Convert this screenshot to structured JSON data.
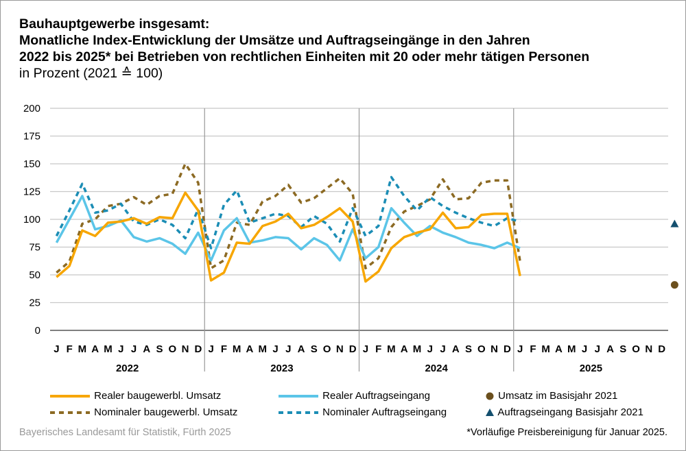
{
  "chart_data": {
    "type": "line",
    "title": "Bauhauptgewerbe insgesamt:\nMonatliche Index-Entwicklung der Umsätze und Auftragseingänge in den Jahren\n2022 bis 2025* bei Betrieben von rechtlichen Einheiten mit 20 oder mehr tätigen Personen",
    "title_lines": [
      "Bauhauptgewerbe insgesamt:",
      "Monatliche Index-Entwicklung der Umsätze und Auftragseingänge in den Jahren",
      "2022 bis 2025* bei Betrieben von rechtlichen Einheiten mit 20 oder mehr tätigen Personen"
    ],
    "subtitle": "in Prozent (2021 ≙ 100)",
    "ylim": [
      0,
      200
    ],
    "yticks": [
      0,
      25,
      50,
      75,
      100,
      125,
      150,
      175,
      200
    ],
    "grid": true,
    "month_labels": [
      "J",
      "F",
      "M",
      "A",
      "M",
      "J",
      "J",
      "A",
      "S",
      "O",
      "N",
      "D"
    ],
    "years": [
      "2022",
      "2023",
      "2024",
      "2025"
    ],
    "legend_position": "bottom",
    "series": [
      {
        "name": "Realer baugewerbl. Umsatz",
        "color": "#f7a600",
        "style": "solid",
        "values": [
          48,
          58,
          90,
          85,
          97,
          98,
          101,
          96,
          102,
          101,
          124,
          108,
          45,
          52,
          79,
          78,
          94,
          98,
          105,
          92,
          95,
          102,
          110,
          98,
          44,
          53,
          74,
          84,
          88,
          91,
          106,
          92,
          93,
          104,
          105,
          105,
          49
        ]
      },
      {
        "name": "Nominaler baugewerbl. Umsatz",
        "color": "#8c6a23",
        "style": "dashed",
        "values": [
          52,
          62,
          96,
          100,
          112,
          114,
          120,
          113,
          121,
          123,
          150,
          133,
          56,
          63,
          97,
          95,
          116,
          121,
          131,
          115,
          119,
          128,
          137,
          123,
          56,
          65,
          93,
          107,
          112,
          118,
          136,
          118,
          119,
          133,
          135,
          135,
          62
        ]
      },
      {
        "name": "Realer Auftragseingang",
        "color": "#5bc5e8",
        "style": "solid",
        "values": [
          79,
          100,
          121,
          91,
          94,
          99,
          84,
          80,
          83,
          78,
          69,
          88,
          63,
          90,
          101,
          79,
          81,
          84,
          83,
          73,
          83,
          77,
          63,
          91,
          65,
          75,
          110,
          97,
          85,
          94,
          88,
          84,
          79,
          77,
          74,
          79,
          74
        ]
      },
      {
        "name": "Nominaler Auftragseingang",
        "color": "#1b8db5",
        "style": "dashed",
        "values": [
          85,
          108,
          132,
          106,
          108,
          114,
          98,
          95,
          100,
          95,
          83,
          109,
          74,
          113,
          126,
          97,
          101,
          105,
          103,
          93,
          103,
          96,
          80,
          110,
          85,
          94,
          138,
          121,
          108,
          120,
          112,
          106,
          101,
          97,
          94,
          101,
          98
        ]
      }
    ],
    "markers": [
      {
        "name": "Umsatz im Basisjahr 2021",
        "color": "#6b4f1d",
        "shape": "circle",
        "month": "J 2025",
        "value": 41
      },
      {
        "name": "Auftragseingang Basisjahr 2021",
        "color": "#134f6e",
        "shape": "triangle",
        "month": "J 2025",
        "value": 96
      }
    ]
  },
  "source": "Bayerisches Landesamt für Statistik, Fürth 2025",
  "footnote": "*Vorläufige Preisbereinigung für Januar 2025."
}
